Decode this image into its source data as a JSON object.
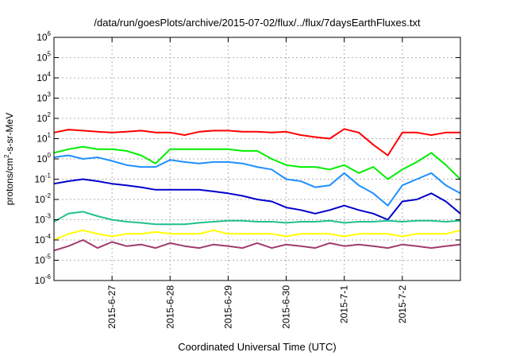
{
  "chart_data": {
    "type": "line",
    "title": "/data/run/goesPlots/archive/2015-07-02/flux/../flux/7daysEarthFluxes.txt",
    "xlabel": "Coordinated Universal Time (UTC)",
    "ylabel": {
      "base": "protons/cm",
      "exp": "2",
      "rest": "-s-sr-MeV"
    },
    "y_scale": "log",
    "ylim": [
      1e-06,
      1000000.0
    ],
    "y_ticks": [
      {
        "base": "10",
        "exp": "-6",
        "value": 1e-06
      },
      {
        "base": "10",
        "exp": "-5",
        "value": 1e-05
      },
      {
        "base": "10",
        "exp": "-4",
        "value": 0.0001
      },
      {
        "base": "10",
        "exp": "-3",
        "value": 0.001
      },
      {
        "base": "10",
        "exp": "-2",
        "value": 0.01
      },
      {
        "base": "10",
        "exp": "-1",
        "value": 0.1
      },
      {
        "base": "10",
        "exp": "0",
        "value": 1.0
      },
      {
        "base": "10",
        "exp": "1",
        "value": 10.0
      },
      {
        "base": "10",
        "exp": "2",
        "value": 100.0
      },
      {
        "base": "10",
        "exp": "3",
        "value": 1000.0
      },
      {
        "base": "10",
        "exp": "4",
        "value": 10000.0
      },
      {
        "base": "10",
        "exp": "5",
        "value": 100000.0
      },
      {
        "base": "10",
        "exp": "6",
        "value": 1000000.0
      }
    ],
    "xlim": [
      "2015-06-26 00:00",
      "2015-07-03 00:00"
    ],
    "x_ticks": [
      "2015-6-27",
      "2015-6-28",
      "2015-6-29",
      "2015-6-30",
      "2015-7-1",
      "2015-7-2"
    ],
    "grid": true,
    "x": [
      "2015-06-26 00:00",
      "2015-06-26 06:00",
      "2015-06-26 12:00",
      "2015-06-26 18:00",
      "2015-06-27 00:00",
      "2015-06-27 06:00",
      "2015-06-27 12:00",
      "2015-06-27 18:00",
      "2015-06-28 00:00",
      "2015-06-28 06:00",
      "2015-06-28 12:00",
      "2015-06-28 18:00",
      "2015-06-29 00:00",
      "2015-06-29 06:00",
      "2015-06-29 12:00",
      "2015-06-29 18:00",
      "2015-06-30 00:00",
      "2015-06-30 06:00",
      "2015-06-30 12:00",
      "2015-06-30 18:00",
      "2015-07-01 00:00",
      "2015-07-01 06:00",
      "2015-07-01 12:00",
      "2015-07-01 18:00",
      "2015-07-02 00:00",
      "2015-07-02 06:00",
      "2015-07-02 12:00",
      "2015-07-02 18:00",
      "2015-07-03 00:00"
    ],
    "series": [
      {
        "color": "#ff0000",
        "values": [
          20,
          28,
          25,
          22,
          20,
          22,
          25,
          20,
          20,
          15,
          22,
          25,
          25,
          22,
          22,
          20,
          22,
          15,
          12,
          10,
          30,
          20,
          5,
          1.5,
          20,
          20,
          15,
          20,
          20
        ]
      },
      {
        "color": "#00ee00",
        "values": [
          2,
          3,
          4,
          3,
          3,
          2.5,
          1.5,
          0.6,
          3,
          3,
          3,
          3,
          3,
          2.5,
          2.5,
          1,
          0.5,
          0.4,
          0.4,
          0.3,
          0.5,
          0.2,
          0.4,
          0.1,
          0.3,
          0.7,
          2,
          0.5,
          0.1
        ]
      },
      {
        "color": "#1e90ff",
        "values": [
          1.2,
          1.5,
          1.0,
          1.2,
          0.8,
          0.5,
          0.4,
          0.4,
          0.9,
          0.7,
          0.6,
          0.7,
          0.7,
          0.6,
          0.4,
          0.3,
          0.1,
          0.08,
          0.04,
          0.05,
          0.2,
          0.05,
          0.02,
          0.005,
          0.05,
          0.1,
          0.2,
          0.05,
          0.02
        ]
      },
      {
        "color": "#0000cd",
        "values": [
          0.06,
          0.08,
          0.1,
          0.08,
          0.06,
          0.05,
          0.04,
          0.03,
          0.03,
          0.03,
          0.03,
          0.025,
          0.02,
          0.015,
          0.01,
          0.008,
          0.004,
          0.003,
          0.002,
          0.003,
          0.005,
          0.003,
          0.002,
          0.001,
          0.008,
          0.01,
          0.02,
          0.008,
          0.002
        ]
      },
      {
        "color": "#20c090",
        "values": [
          0.0008,
          0.002,
          0.0025,
          0.0015,
          0.001,
          0.0008,
          0.0007,
          0.0006,
          0.0006,
          0.0006,
          0.0007,
          0.0008,
          0.0009,
          0.0009,
          0.0008,
          0.0008,
          0.0007,
          0.0008,
          0.0008,
          0.0009,
          0.0007,
          0.0008,
          0.0008,
          0.0009,
          0.0008,
          0.0009,
          0.0009,
          0.0008,
          0.0009
        ]
      },
      {
        "color": "#ffff00",
        "values": [
          0.0001,
          0.0002,
          0.0003,
          0.0002,
          0.00015,
          0.0002,
          0.0002,
          0.00025,
          0.0002,
          0.0002,
          0.0002,
          0.0003,
          0.0002,
          0.0002,
          0.0002,
          0.0002,
          0.00015,
          0.0002,
          0.0002,
          0.0002,
          0.00015,
          0.0002,
          0.0002,
          0.0002,
          0.00015,
          0.0002,
          0.0002,
          0.0002,
          0.0003
        ]
      },
      {
        "color": "#a03c6e",
        "values": [
          3e-05,
          5e-05,
          0.0001,
          4e-05,
          8e-05,
          5e-05,
          6e-05,
          4e-05,
          7e-05,
          5e-05,
          4e-05,
          6e-05,
          5e-05,
          4e-05,
          7e-05,
          4e-05,
          6e-05,
          5e-05,
          4e-05,
          7e-05,
          5e-05,
          6e-05,
          5e-05,
          4e-05,
          6e-05,
          5e-05,
          4e-05,
          5e-05,
          6e-05
        ]
      }
    ]
  }
}
